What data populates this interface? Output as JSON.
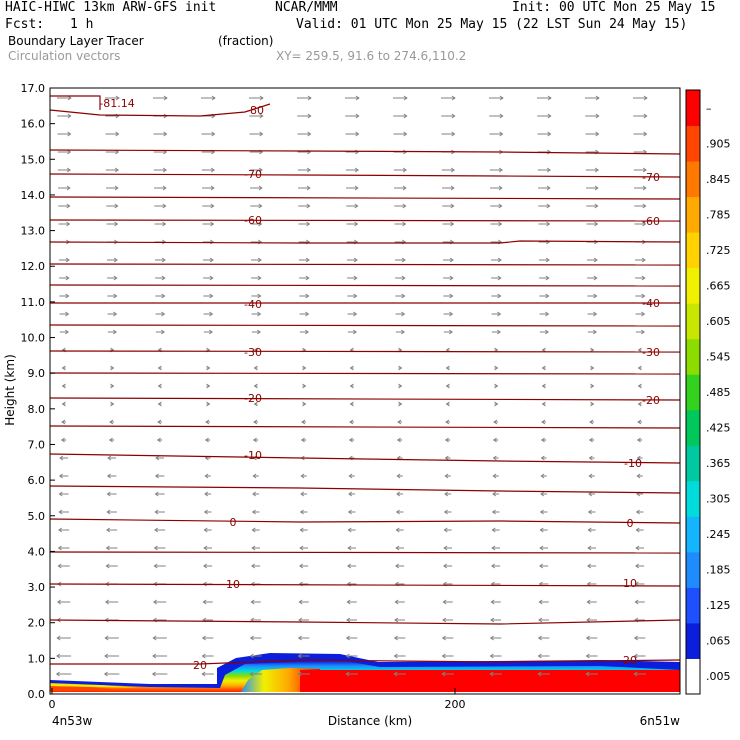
{
  "header": {
    "model_line": "HAIC-HIWC 13km ARW-GFS init",
    "center": "NCAR/MMM",
    "init": "Init: 00 UTC Mon 25 May 15",
    "fcst_label": "Fcst:",
    "fcst_value": "1 h",
    "valid": "Valid: 01 UTC Mon 25 May 15 (22 LST Sun 24 May 15)",
    "field_name": "Boundary Layer Tracer",
    "field_units": "(fraction)",
    "vectors_label": "Circulation vectors",
    "xy_label": "XY= 259.5, 91.6 to 274.6,110.2"
  },
  "chart_data": {
    "type": "heatmap",
    "xlabel": "Distance (km)",
    "ylabel": "Height (km)",
    "xlim": [
      0,
      285
    ],
    "ylim": [
      0.0,
      17.0
    ],
    "x_ticks": [
      0,
      200
    ],
    "y_ticks": [
      "0.0",
      "1.0",
      "2.0",
      "3.0",
      "4.0",
      "5.0",
      "6.0",
      "7.0",
      "8.0",
      "9.0",
      "10.0",
      "11.0",
      "12.0",
      "13.0",
      "14.0",
      "15.0",
      "16.0",
      "17.0"
    ],
    "left_location": "4n53w",
    "right_location": "6n51w",
    "colorbar": {
      "labels": [
        ".005",
        ".065",
        ".125",
        ".185",
        ".245",
        ".305",
        ".365",
        ".425",
        ".485",
        ".545",
        ".605",
        ".665",
        ".725",
        ".785",
        ".845",
        ".905",
        "–"
      ],
      "colors": [
        "#ffffff",
        "#0a1edc",
        "#1e50ff",
        "#1e8cff",
        "#14b4ff",
        "#00dcdc",
        "#00c8a0",
        "#00c85a",
        "#32d21e",
        "#8cdc00",
        "#c8e600",
        "#f0f000",
        "#ffd200",
        "#ffaa00",
        "#ff7800",
        "#ff4600",
        "#ff0000"
      ]
    },
    "contour_labels": [
      "-81.14",
      "-80",
      "-70",
      "-70",
      "-60",
      "-60",
      "-40",
      "-40",
      "-30",
      "-30",
      "-20",
      "-20",
      "-10",
      "-10",
      "0",
      "0",
      "10",
      "10",
      "20",
      "20"
    ],
    "tracer_region": {
      "description": "boundary layer tracer near surface",
      "top_heights_km": [
        [
          0,
          0.35
        ],
        [
          30,
          0.3
        ],
        [
          60,
          0.2
        ],
        [
          83,
          0.25
        ],
        [
          84,
          0.75
        ],
        [
          100,
          1.05
        ],
        [
          140,
          1.05
        ],
        [
          160,
          0.9
        ],
        [
          285,
          0.8
        ]
      ]
    }
  }
}
